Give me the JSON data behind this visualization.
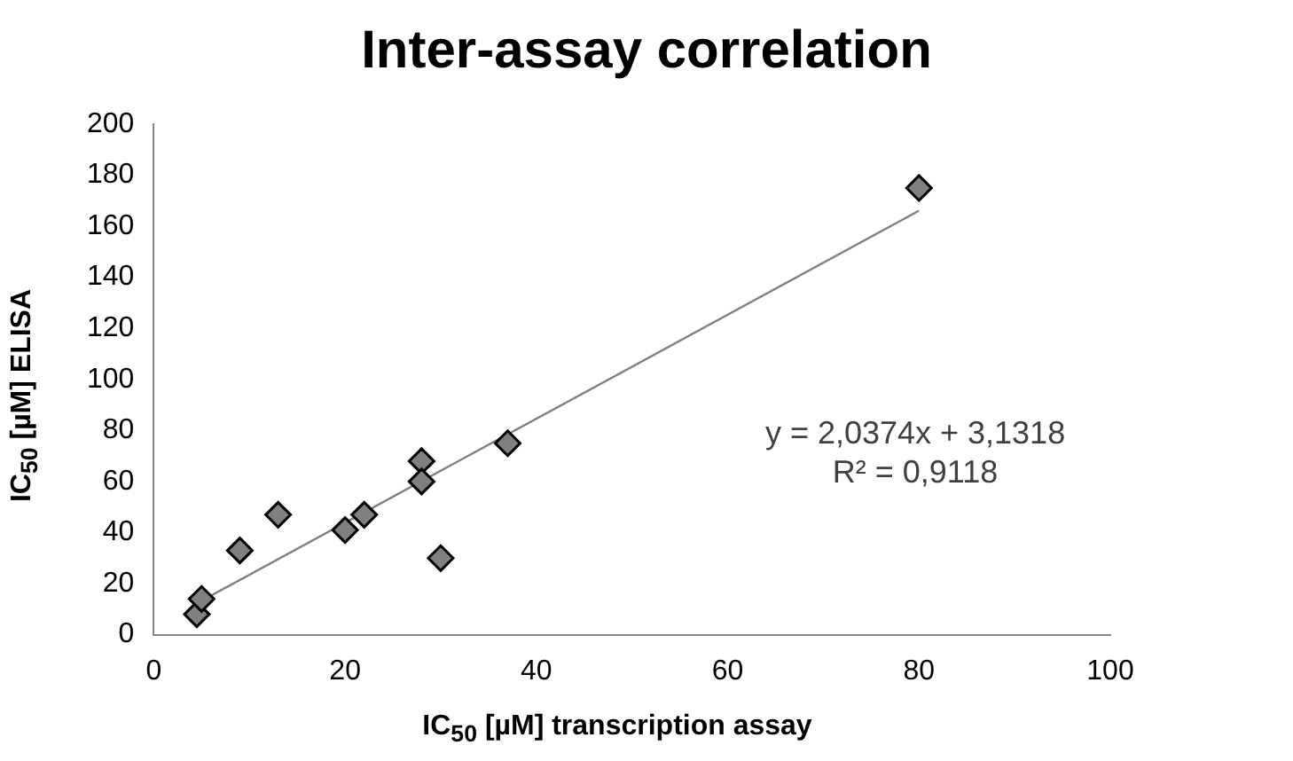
{
  "chart_data": {
    "type": "scatter",
    "title": "Inter-assay correlation",
    "xlabel": "IC$_{50}$ [µM] transcription assay",
    "ylabel": "IC$_{50}$ [µM] ELISA",
    "annotations": [
      "y = 2,0374x + 3,1318",
      "R² = 0,9118"
    ],
    "series": [
      {
        "type": "scatter",
        "color": "#808080",
        "marker": "diamond",
        "x": [
          4.5,
          5,
          9,
          13,
          20,
          22,
          28,
          28,
          30,
          37,
          80
        ],
        "values": [
          8,
          14,
          33,
          47,
          41,
          47,
          68,
          60,
          30,
          75,
          175
        ]
      },
      {
        "type": "line",
        "color": "#808080",
        "marker": "none",
        "x": [
          5,
          80
        ],
        "values": [
          13.3,
          166.1
        ]
      }
    ],
    "xlim": [
      0,
      100
    ],
    "xticks": [
      0,
      20,
      40,
      60,
      80,
      100
    ],
    "ylim": [
      0,
      200
    ],
    "yticks": [
      0,
      20,
      40,
      60,
      80,
      100,
      120,
      140,
      160,
      180,
      200
    ],
    "grid": false,
    "legend": false
  }
}
